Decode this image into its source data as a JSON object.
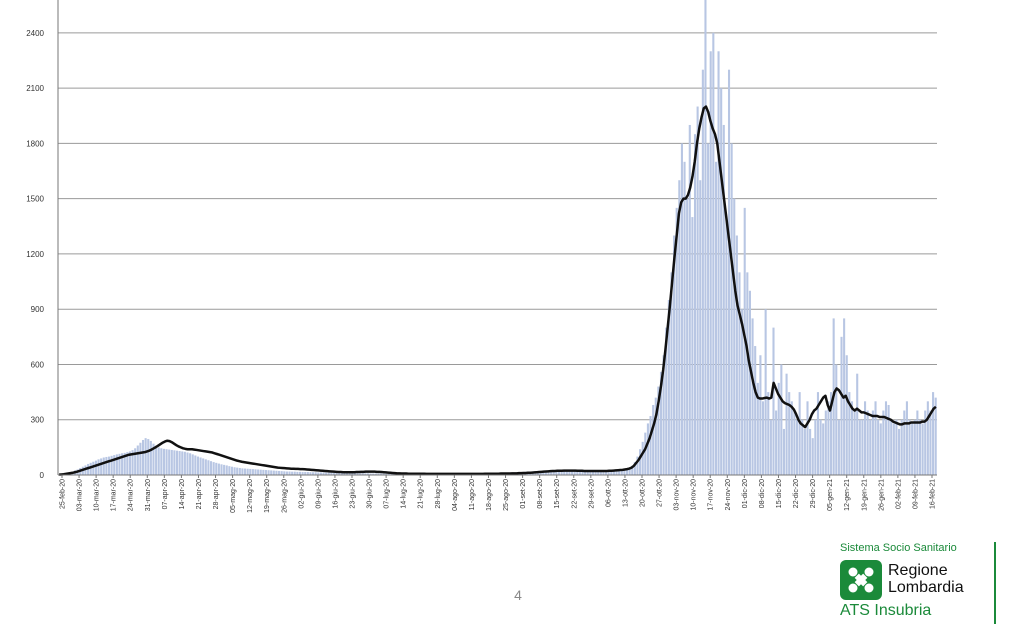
{
  "chart_data": {
    "type": "bar",
    "title": "",
    "xlabel": "",
    "ylabel": "",
    "ylim": [
      0,
      2600
    ],
    "yticks": [
      0,
      300,
      600,
      900,
      1200,
      1500,
      1800,
      2100,
      2400
    ],
    "grid": true,
    "x_tick_labels": [
      "25-feb-20",
      "03-mar-20",
      "10-mar-20",
      "17-mar-20",
      "24-mar-20",
      "31-mar-20",
      "07-apr-20",
      "14-apr-20",
      "21-apr-20",
      "28-apr-20",
      "05-mag-20",
      "12-mag-20",
      "19-mag-20",
      "26-mag-20",
      "02-giu-20",
      "09-giu-20",
      "16-giu-20",
      "23-giu-20",
      "30-giu-20",
      "07-lug-20",
      "14-lug-20",
      "21-lug-20",
      "28-lug-20",
      "04-ago-20",
      "11-ago-20",
      "18-ago-20",
      "25-ago-20",
      "01-set-20",
      "08-set-20",
      "15-set-20",
      "22-set-20",
      "29-set-20",
      "06-ott-20",
      "13-ott-20",
      "20-ott-20",
      "27-ott-20",
      "03-nov-20",
      "10-nov-20",
      "17-nov-20",
      "24-nov-20",
      "01-dic-20",
      "08-dic-20",
      "15-dic-20",
      "22-dic-20",
      "29-dic-20",
      "05-gen-21",
      "12-gen-21",
      "19-gen-21",
      "26-gen-21",
      "02-feb-21",
      "09-feb-21",
      "16-feb-21"
    ],
    "series": [
      {
        "kind": "bars",
        "color": "#b8c6e3",
        "values": [
          2,
          3,
          5,
          8,
          12,
          18,
          25,
          30,
          38,
          45,
          52,
          60,
          66,
          72,
          78,
          85,
          90,
          95,
          98,
          100,
          104,
          108,
          112,
          115,
          118,
          120,
          124,
          128,
          135,
          145,
          160,
          175,
          190,
          200,
          195,
          185,
          170,
          160,
          150,
          145,
          142,
          140,
          138,
          136,
          134,
          132,
          130,
          128,
          126,
          122,
          118,
          112,
          106,
          100,
          95,
          90,
          85,
          80,
          75,
          70,
          66,
          62,
          58,
          55,
          52,
          48,
          45,
          42,
          40,
          38,
          36,
          35,
          34,
          33,
          32,
          31,
          30,
          29,
          28,
          27,
          26,
          25,
          24,
          23,
          22,
          21,
          20,
          19,
          19,
          18,
          18,
          17,
          17,
          16,
          16,
          16,
          15,
          15,
          15,
          14,
          14,
          14,
          13,
          13,
          13,
          12,
          12,
          12,
          11,
          11,
          11,
          10,
          10,
          10,
          10,
          9,
          9,
          9,
          9,
          8,
          8,
          8,
          8,
          8,
          7,
          7,
          7,
          7,
          7,
          7,
          7,
          7,
          6,
          6,
          6,
          6,
          6,
          6,
          6,
          6,
          6,
          6,
          6,
          6,
          6,
          6,
          6,
          6,
          6,
          6,
          6,
          6,
          6,
          7,
          7,
          7,
          7,
          7,
          7,
          8,
          8,
          8,
          8,
          8,
          9,
          9,
          9,
          10,
          10,
          11,
          11,
          12,
          12,
          13,
          13,
          14,
          15,
          16,
          17,
          18,
          19,
          20,
          21,
          22,
          22,
          23,
          23,
          24,
          24,
          24,
          24,
          24,
          24,
          24,
          23,
          23,
          23,
          22,
          22,
          22,
          22,
          22,
          22,
          22,
          22,
          22,
          22,
          23,
          23,
          24,
          24,
          25,
          26,
          27,
          28,
          30,
          32,
          35,
          40,
          50,
          70,
          100,
          140,
          180,
          230,
          280,
          320,
          380,
          420,
          480,
          560,
          650,
          800,
          950,
          1100,
          1300,
          1450,
          1600,
          1800,
          1700,
          1500,
          1900,
          1400,
          1850,
          2000,
          1600,
          2200,
          2600,
          1800,
          2300,
          2400,
          1700,
          2300,
          2100,
          1900,
          1400,
          2200,
          1800,
          1500,
          1300,
          1100,
          900,
          1450,
          1100,
          1000,
          850,
          700,
          500,
          650,
          400,
          900,
          450,
          300,
          800,
          350,
          500,
          600,
          250,
          550,
          450,
          400,
          350,
          300,
          450,
          300,
          250,
          400,
          250,
          200,
          300,
          450,
          300,
          280,
          350,
          400,
          450,
          850,
          600,
          300,
          750,
          850,
          650,
          450,
          400,
          350,
          550,
          300,
          300,
          400,
          350,
          300,
          350,
          400,
          300,
          280,
          350,
          400,
          380,
          300,
          280,
          300,
          250,
          300,
          350,
          400,
          300,
          280,
          300,
          350,
          300,
          280,
          350,
          400,
          350,
          450,
          420
        ]
      },
      {
        "kind": "line",
        "name": "",
        "color": "#111111",
        "values": [
          2,
          3,
          4,
          6,
          8,
          10,
          12,
          15,
          18,
          22,
          26,
          30,
          34,
          38,
          42,
          46,
          50,
          54,
          58,
          62,
          66,
          70,
          74,
          78,
          82,
          86,
          90,
          94,
          98,
          102,
          106,
          110,
          112,
          114,
          116,
          118,
          120,
          122,
          124,
          128,
          132,
          138,
          145,
          152,
          160,
          168,
          176,
          182,
          186,
          184,
          178,
          170,
          162,
          155,
          150,
          145,
          142,
          140,
          140,
          140,
          138,
          136,
          134,
          132,
          130,
          128,
          126,
          124,
          122,
          118,
          114,
          110,
          106,
          102,
          98,
          94,
          90,
          86,
          82,
          78,
          75,
          72,
          70,
          68,
          66,
          64,
          62,
          60,
          58,
          56,
          54,
          52,
          50,
          48,
          46,
          44,
          42,
          40,
          39,
          38,
          37,
          36,
          35,
          34,
          34,
          33,
          33,
          32,
          32,
          31,
          30,
          29,
          28,
          27,
          26,
          25,
          24,
          23,
          22,
          21,
          20,
          19,
          18,
          17,
          16,
          16,
          15,
          15,
          15,
          15,
          15,
          15,
          16,
          16,
          17,
          17,
          18,
          18,
          18,
          18,
          18,
          17,
          17,
          16,
          15,
          14,
          13,
          12,
          11,
          10,
          9,
          9,
          8,
          8,
          8,
          7,
          7,
          7,
          7,
          7,
          7,
          7,
          7,
          6,
          6,
          6,
          6,
          6,
          6,
          6,
          6,
          6,
          6,
          6,
          6,
          6,
          6,
          6,
          6,
          6,
          6,
          6,
          6,
          6,
          6,
          6,
          6,
          6,
          6,
          7,
          7,
          7,
          7,
          7,
          7,
          7,
          8,
          8,
          8,
          8,
          8,
          9,
          9,
          9,
          10,
          10,
          11,
          11,
          12,
          12,
          13,
          14,
          15,
          16,
          17,
          18,
          19,
          20,
          21,
          22,
          22,
          23,
          23,
          23,
          24,
          24,
          24,
          24,
          24,
          24,
          23,
          23,
          23,
          22,
          22,
          22,
          22,
          22,
          22,
          22,
          22,
          22,
          22,
          22,
          23,
          23,
          24,
          25,
          26,
          27,
          28,
          30,
          32,
          35,
          40,
          50,
          65,
          80,
          100,
          120,
          140,
          170,
          200,
          240,
          280,
          330,
          400,
          480,
          570,
          680,
          800,
          920,
          1050,
          1180,
          1300,
          1420,
          1480,
          1500,
          1500,
          1520,
          1560,
          1620,
          1700,
          1800,
          1880,
          1940,
          1990,
          2000,
          1970,
          1920,
          1880,
          1850,
          1800,
          1700,
          1600,
          1500,
          1400,
          1300,
          1200,
          1100,
          1000,
          920,
          870,
          820,
          760,
          700,
          620,
          560,
          500,
          450,
          420,
          415,
          415,
          418,
          420,
          415,
          420,
          500,
          470,
          440,
          420,
          400,
          390,
          385,
          380,
          370,
          355,
          330,
          300,
          280,
          270,
          260,
          280,
          300,
          330,
          350,
          360,
          380,
          400,
          420,
          430,
          380,
          350,
          400,
          450,
          470,
          460,
          440,
          420,
          430,
          400,
          380,
          360,
          350,
          360,
          350,
          340,
          340,
          335,
          330,
          325,
          320,
          320,
          320,
          315,
          315,
          315,
          310,
          305,
          300,
          290,
          285,
          280,
          275,
          275,
          280,
          280,
          280,
          285,
          285,
          285,
          285,
          285,
          290,
          290,
          300,
          320,
          340,
          360,
          370
        ]
      }
    ]
  },
  "footer": {
    "page_number": "4"
  },
  "logo": {
    "tagline": "Sistema Socio Sanitario",
    "region_line1": "Regione",
    "region_line2": "Lombardia",
    "unit": "ATS Insubria",
    "color": "#1b8a3a"
  }
}
